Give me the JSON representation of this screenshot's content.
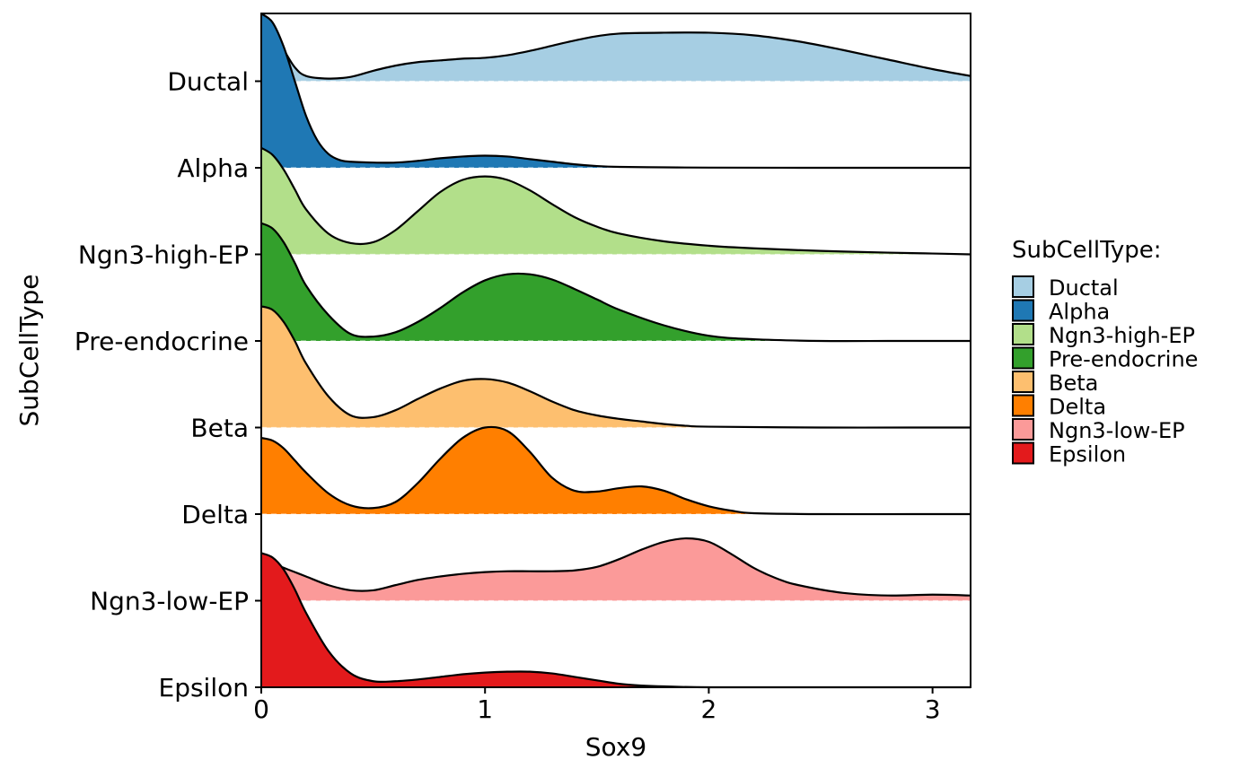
{
  "chart_data": {
    "type": "ridgeline",
    "xlabel": "Sox9",
    "ylabel": "SubCellType",
    "xlim": [
      0,
      3.17
    ],
    "x_ticks": [
      "0",
      "1",
      "2",
      "3"
    ],
    "grid": false,
    "legend_position": "right",
    "legend": {
      "title": "SubCellType:",
      "entries": [
        "Ductal",
        "Alpha",
        "Ngn3-high-EP",
        "Pre-endocrine",
        "Beta",
        "Delta",
        "Ngn3-low-EP",
        "Epsilon"
      ]
    },
    "series": [
      {
        "name": "Ductal",
        "color": "#A6CEE3",
        "x": [
          0,
          0.05,
          0.1,
          0.15,
          0.2,
          0.3,
          0.4,
          0.5,
          0.6,
          0.7,
          0.8,
          0.9,
          1.0,
          1.1,
          1.2,
          1.3,
          1.4,
          1.5,
          1.6,
          1.8,
          2.0,
          2.2,
          2.4,
          2.6,
          2.8,
          3.0,
          3.17
        ],
        "density": [
          0.68,
          0.52,
          0.36,
          0.16,
          0.06,
          0.03,
          0.05,
          0.12,
          0.18,
          0.22,
          0.24,
          0.26,
          0.27,
          0.3,
          0.35,
          0.41,
          0.47,
          0.52,
          0.55,
          0.56,
          0.56,
          0.53,
          0.46,
          0.36,
          0.25,
          0.14,
          0.06
        ]
      },
      {
        "name": "Alpha",
        "color": "#1F78B4",
        "x": [
          0,
          0.05,
          0.1,
          0.15,
          0.2,
          0.25,
          0.3,
          0.35,
          0.4,
          0.5,
          0.6,
          0.7,
          0.8,
          0.9,
          1.0,
          1.1,
          1.2,
          1.3,
          1.4,
          1.5,
          1.6,
          1.8,
          2.0,
          2.5,
          3.0,
          3.17
        ],
        "density": [
          1.78,
          1.68,
          1.4,
          1.0,
          0.6,
          0.32,
          0.16,
          0.09,
          0.07,
          0.06,
          0.06,
          0.08,
          0.11,
          0.13,
          0.14,
          0.13,
          0.1,
          0.07,
          0.04,
          0.02,
          0.01,
          0.005,
          0.002,
          0.0,
          0.0,
          0.0
        ]
      },
      {
        "name": "Ngn3-high-EP",
        "color": "#B2DF8A",
        "x": [
          0,
          0.05,
          0.1,
          0.15,
          0.2,
          0.3,
          0.4,
          0.5,
          0.6,
          0.7,
          0.8,
          0.9,
          1.0,
          1.1,
          1.2,
          1.3,
          1.4,
          1.5,
          1.6,
          1.8,
          2.0,
          2.2,
          2.5,
          2.8,
          3.0,
          3.17
        ],
        "density": [
          1.23,
          1.15,
          0.98,
          0.75,
          0.52,
          0.24,
          0.13,
          0.14,
          0.28,
          0.5,
          0.72,
          0.86,
          0.9,
          0.86,
          0.74,
          0.58,
          0.43,
          0.32,
          0.24,
          0.15,
          0.1,
          0.07,
          0.04,
          0.02,
          0.01,
          0.0
        ]
      },
      {
        "name": "Pre-endocrine",
        "color": "#33A02C",
        "x": [
          0,
          0.05,
          0.1,
          0.15,
          0.2,
          0.3,
          0.4,
          0.5,
          0.6,
          0.7,
          0.8,
          0.9,
          1.0,
          1.1,
          1.2,
          1.3,
          1.4,
          1.5,
          1.6,
          1.8,
          2.0,
          2.2,
          2.5,
          2.8,
          3.0,
          3.17
        ],
        "density": [
          1.36,
          1.3,
          1.14,
          0.9,
          0.64,
          0.3,
          0.08,
          0.05,
          0.1,
          0.22,
          0.38,
          0.56,
          0.7,
          0.77,
          0.77,
          0.71,
          0.6,
          0.48,
          0.36,
          0.18,
          0.06,
          0.02,
          0.0,
          0.0,
          0.0,
          0.0
        ]
      },
      {
        "name": "Beta",
        "color": "#FDBF6F",
        "x": [
          0,
          0.05,
          0.1,
          0.15,
          0.2,
          0.3,
          0.4,
          0.5,
          0.6,
          0.7,
          0.8,
          0.9,
          1.0,
          1.1,
          1.2,
          1.3,
          1.4,
          1.5,
          1.6,
          1.7,
          1.8,
          1.9,
          2.0,
          2.5,
          3.0,
          3.17
        ],
        "density": [
          1.4,
          1.36,
          1.22,
          1.0,
          0.74,
          0.36,
          0.14,
          0.12,
          0.2,
          0.33,
          0.45,
          0.54,
          0.56,
          0.52,
          0.42,
          0.3,
          0.2,
          0.14,
          0.1,
          0.07,
          0.04,
          0.02,
          0.01,
          0.0,
          0.0,
          0.0
        ]
      },
      {
        "name": "Delta",
        "color": "#FF7F00",
        "x": [
          0,
          0.05,
          0.1,
          0.15,
          0.2,
          0.3,
          0.4,
          0.5,
          0.6,
          0.7,
          0.8,
          0.9,
          1.0,
          1.1,
          1.2,
          1.3,
          1.4,
          1.5,
          1.6,
          1.7,
          1.8,
          1.9,
          2.0,
          2.1,
          2.2,
          2.5,
          3.0,
          3.17
        ],
        "density": [
          0.88,
          0.85,
          0.76,
          0.62,
          0.48,
          0.24,
          0.1,
          0.07,
          0.14,
          0.36,
          0.64,
          0.88,
          1.0,
          0.96,
          0.72,
          0.42,
          0.27,
          0.26,
          0.3,
          0.32,
          0.27,
          0.17,
          0.09,
          0.04,
          0.01,
          0.0,
          0.0,
          0.0
        ]
      },
      {
        "name": "Ngn3-low-EP",
        "color": "#FB9A99",
        "x": [
          0,
          0.05,
          0.1,
          0.15,
          0.2,
          0.3,
          0.4,
          0.5,
          0.6,
          0.7,
          0.8,
          0.9,
          1.0,
          1.1,
          1.2,
          1.3,
          1.4,
          1.5,
          1.6,
          1.7,
          1.8,
          1.9,
          2.0,
          2.1,
          2.2,
          2.3,
          2.4,
          2.6,
          2.8,
          3.0,
          3.17
        ],
        "density": [
          0.45,
          0.43,
          0.38,
          0.33,
          0.28,
          0.18,
          0.12,
          0.12,
          0.18,
          0.24,
          0.28,
          0.31,
          0.33,
          0.34,
          0.34,
          0.34,
          0.35,
          0.39,
          0.48,
          0.59,
          0.68,
          0.72,
          0.68,
          0.54,
          0.38,
          0.26,
          0.18,
          0.09,
          0.06,
          0.07,
          0.06
        ]
      },
      {
        "name": "Epsilon",
        "color": "#E31A1C",
        "x": [
          0,
          0.05,
          0.1,
          0.15,
          0.2,
          0.3,
          0.4,
          0.5,
          0.6,
          0.7,
          0.8,
          0.9,
          1.0,
          1.1,
          1.2,
          1.3,
          1.4,
          1.5,
          1.6,
          1.7,
          1.8,
          2.0,
          2.5,
          3.0,
          3.17
        ],
        "density": [
          1.55,
          1.5,
          1.36,
          1.13,
          0.86,
          0.42,
          0.16,
          0.07,
          0.07,
          0.09,
          0.12,
          0.15,
          0.17,
          0.18,
          0.18,
          0.16,
          0.12,
          0.08,
          0.04,
          0.02,
          0.01,
          0.0,
          0.0,
          0.0,
          0.0
        ]
      }
    ]
  }
}
